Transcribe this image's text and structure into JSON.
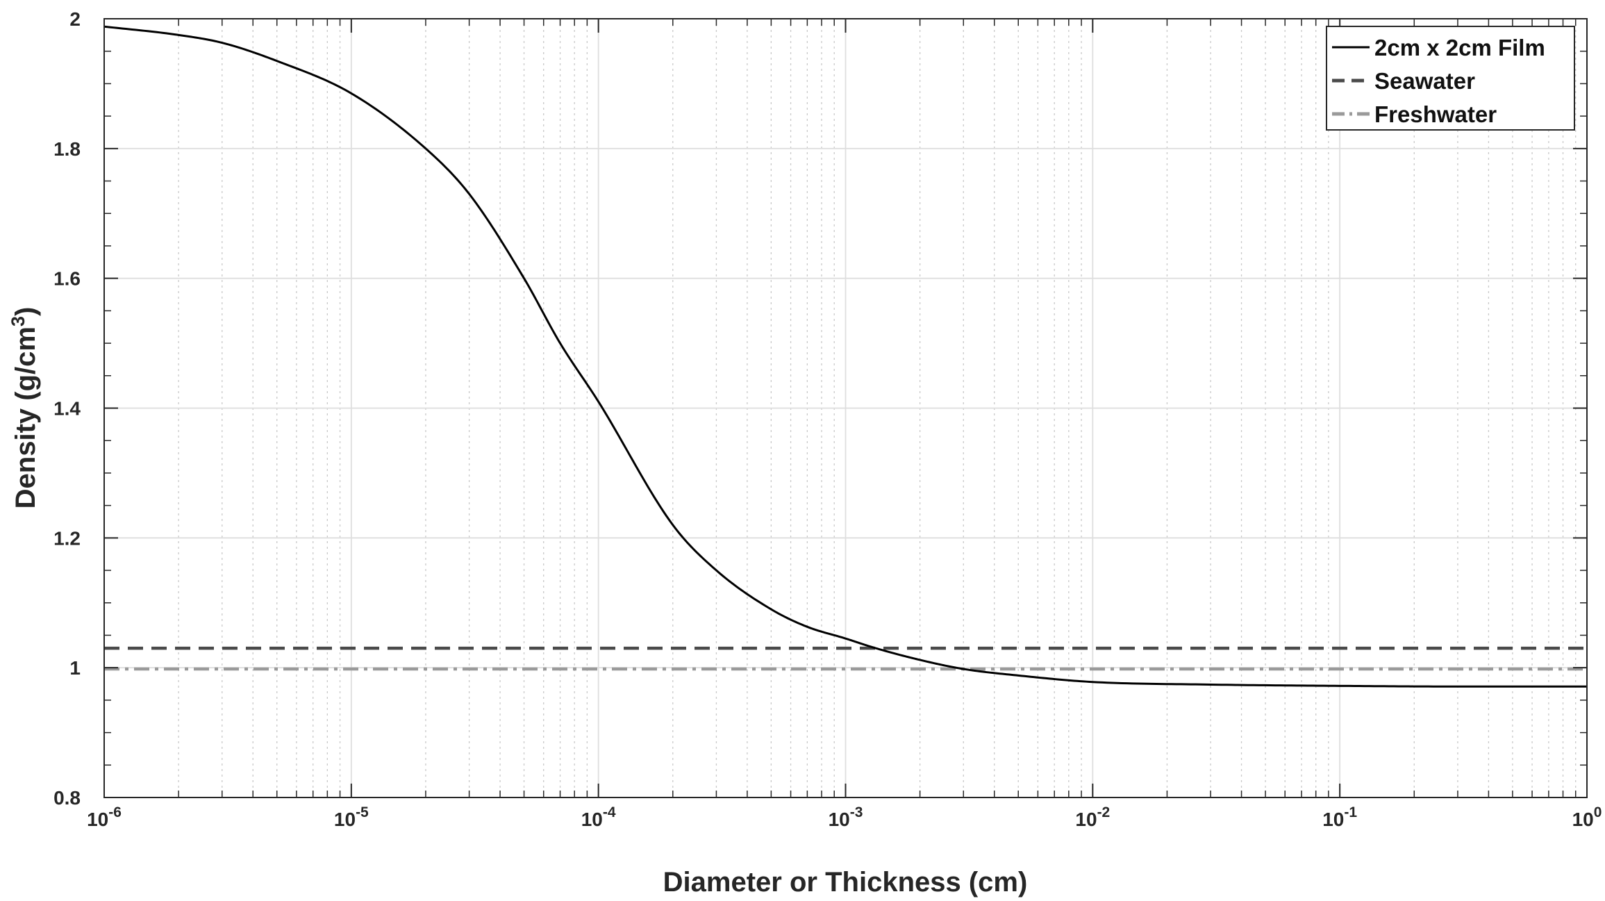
{
  "chart_data": {
    "type": "line",
    "xlabel": "Diameter or Thickness (cm)",
    "ylabel_main": "Density (g/cm",
    "ylabel_sup": "3",
    "ylabel_close": ")",
    "xscale": "log",
    "xlim": [
      1e-06,
      1
    ],
    "ylim": [
      0.8,
      2.0
    ],
    "grid": true,
    "legend_position": "top-right",
    "x_tick_labels": [
      {
        "base": "10",
        "exp": "-6"
      },
      {
        "base": "10",
        "exp": "-5"
      },
      {
        "base": "10",
        "exp": "-4"
      },
      {
        "base": "10",
        "exp": "-3"
      },
      {
        "base": "10",
        "exp": "-2"
      },
      {
        "base": "10",
        "exp": "-1"
      },
      {
        "base": "10",
        "exp": "0"
      }
    ],
    "y_tick_labels": [
      "0.8",
      "1",
      "1.2",
      "1.4",
      "1.6",
      "1.8",
      "2"
    ],
    "series": [
      {
        "name": "2cm x 2cm Film",
        "style": "solid",
        "color": "#000000",
        "x": [
          1e-06,
          2e-06,
          3e-06,
          5e-06,
          1e-05,
          2e-05,
          3e-05,
          5e-05,
          7e-05,
          0.0001,
          0.0002,
          0.0003,
          0.0005,
          0.0007,
          0.001,
          0.0013,
          0.002,
          0.003,
          0.005,
          0.01,
          0.03,
          0.1,
          0.3,
          1
        ],
        "y": [
          1.988,
          1.975,
          1.963,
          1.935,
          1.885,
          1.8,
          1.73,
          1.6,
          1.5,
          1.41,
          1.22,
          1.15,
          1.09,
          1.063,
          1.045,
          1.031,
          1.012,
          0.998,
          0.988,
          0.978,
          0.974,
          0.972,
          0.971,
          0.971
        ]
      },
      {
        "name": "Seawater",
        "style": "dashed",
        "color": "#4a4a4a",
        "x": [
          1e-06,
          1
        ],
        "y": [
          1.03,
          1.03
        ]
      },
      {
        "name": "Freshwater",
        "style": "dashdot",
        "color": "#9a9a9a",
        "x": [
          1e-06,
          1
        ],
        "y": [
          0.998,
          0.998
        ]
      }
    ]
  }
}
